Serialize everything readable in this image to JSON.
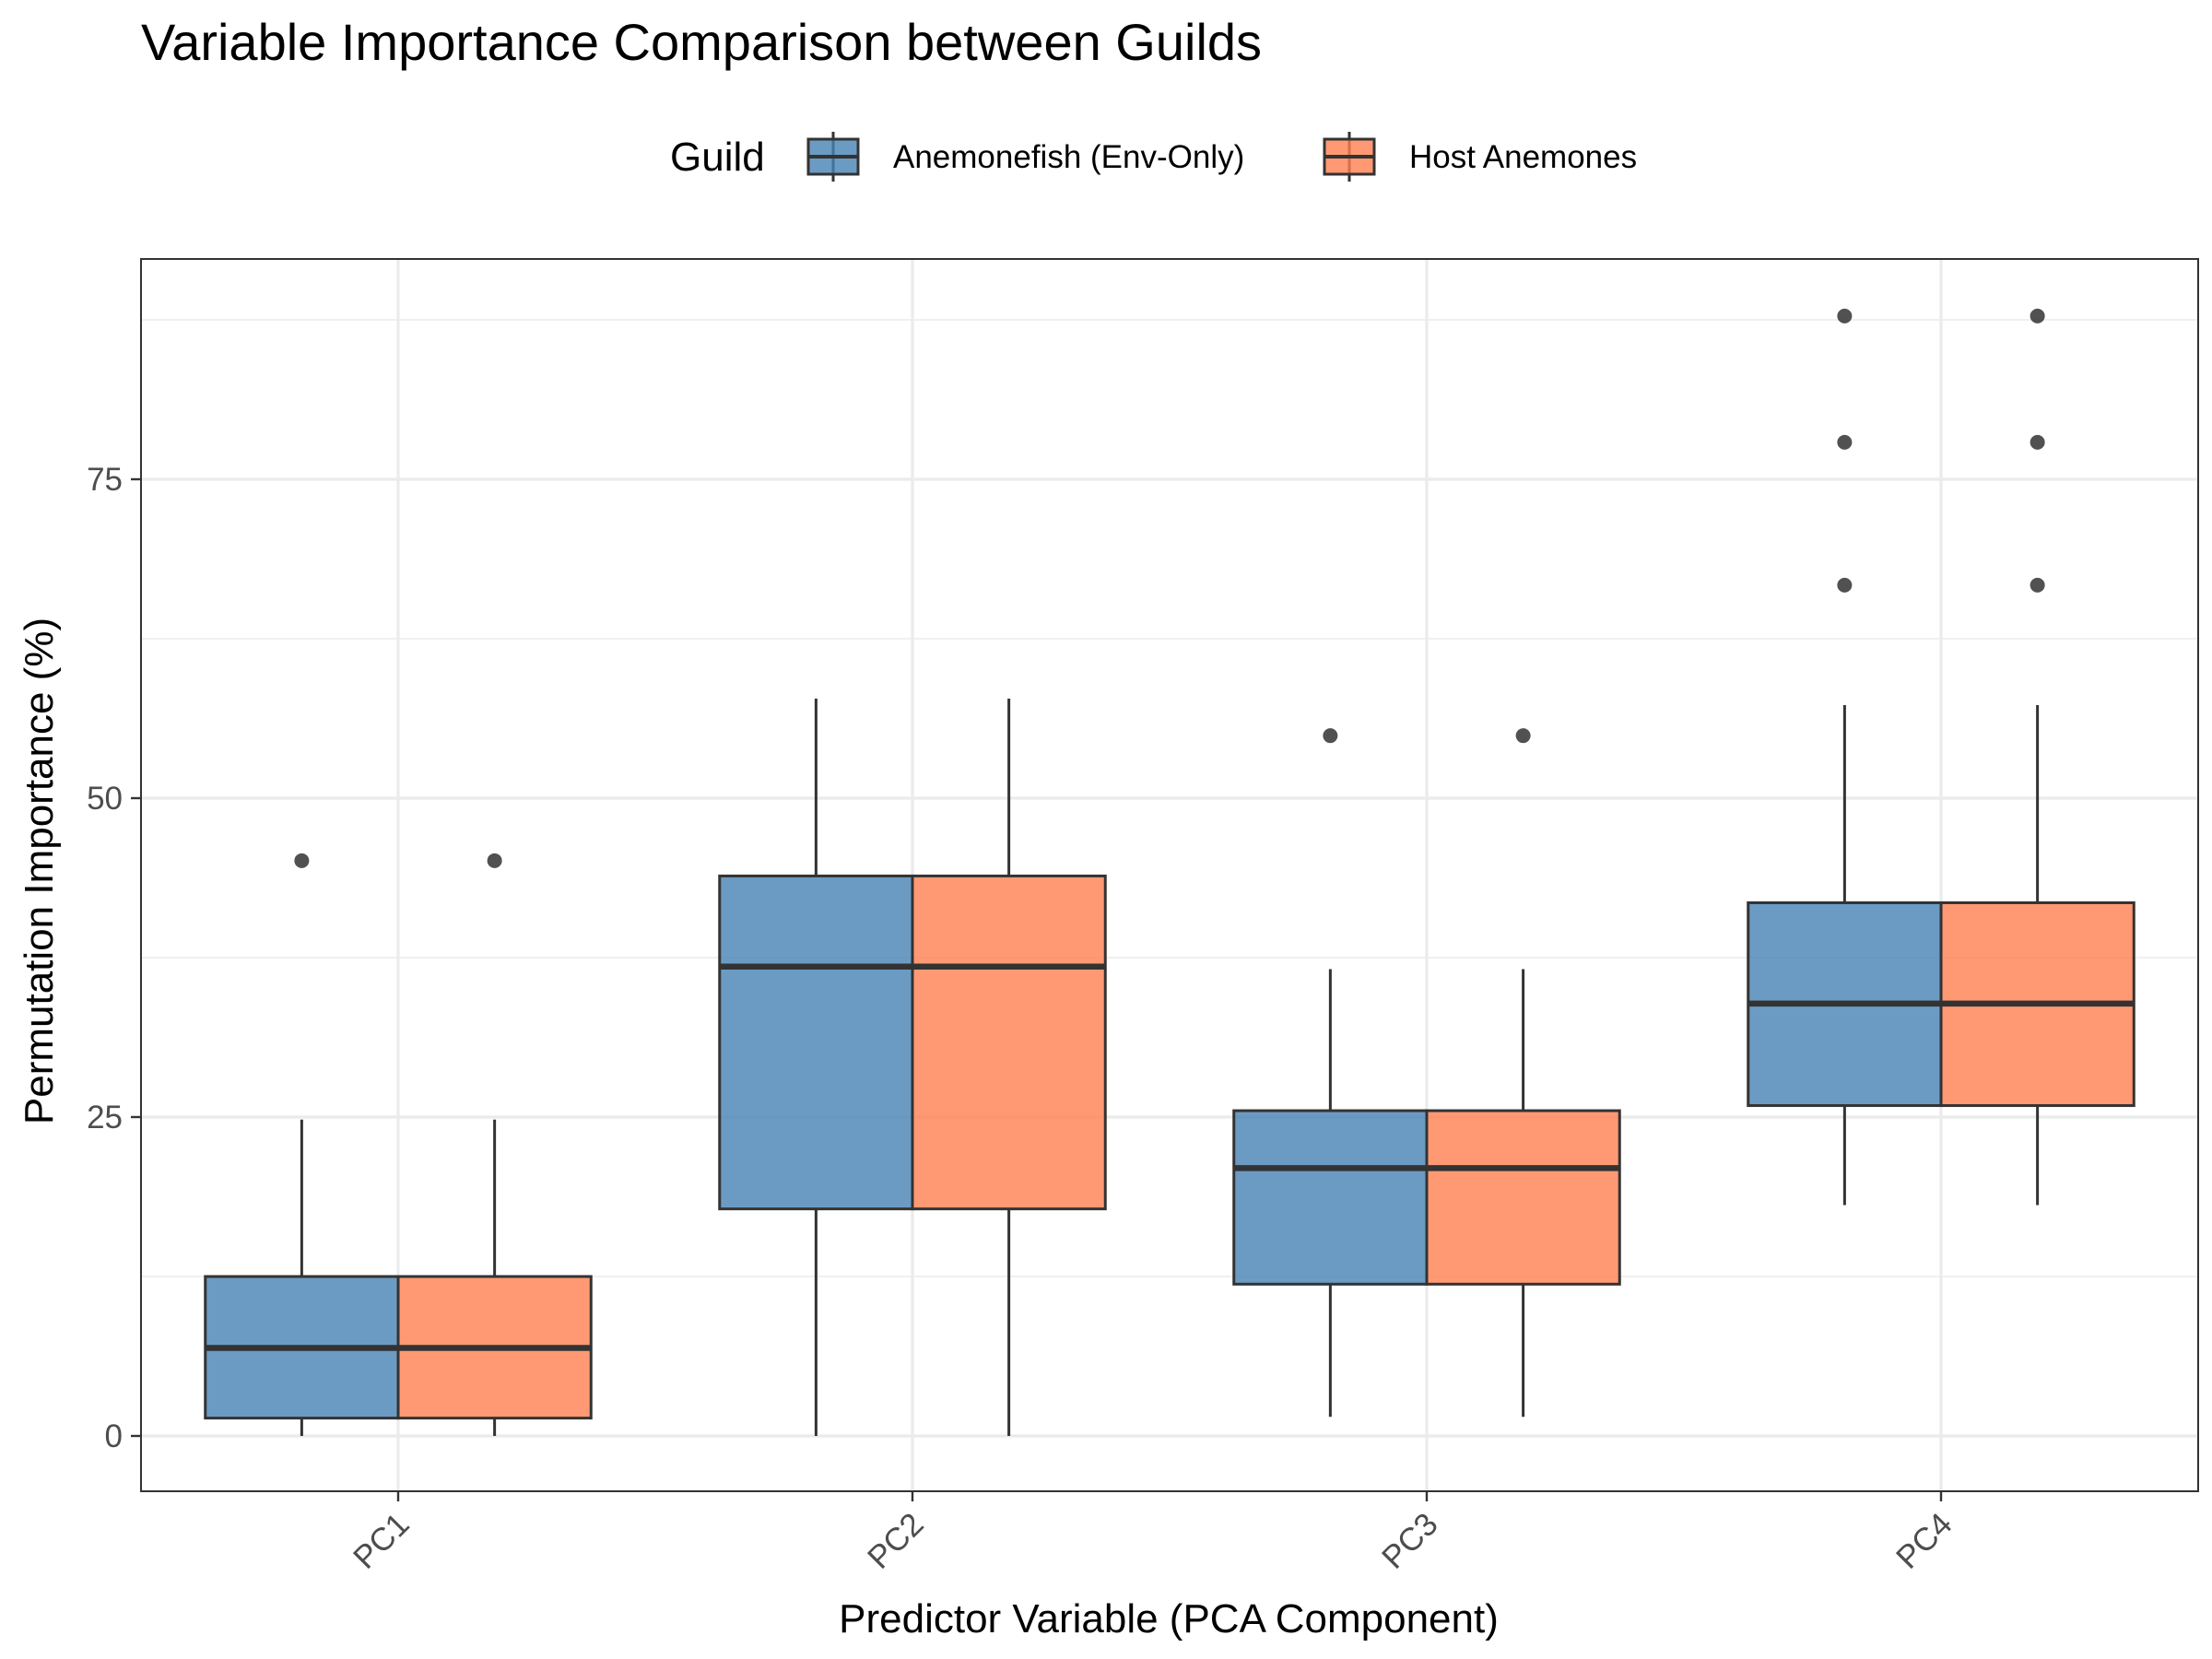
{
  "chart_data": {
    "type": "boxplot",
    "title": "Variable Importance Comparison between Guilds",
    "xlabel": "Predictor Variable (PCA Component)",
    "ylabel": "Permutation Importance (%)",
    "ylim": [
      -4,
      92.5
    ],
    "y_ticks": [
      0,
      25,
      50,
      75
    ],
    "categories": [
      "PC1",
      "PC2",
      "PC3",
      "PC4"
    ],
    "grid": true,
    "legend": {
      "title": "Guild",
      "position": "top"
    },
    "series": [
      {
        "name": "Anemonefish (Env-Only)",
        "color": "#4682B4",
        "boxes": [
          {
            "category": "PC1",
            "whisker_low": 0,
            "q1": 1.4,
            "median": 6.9,
            "q3": 12.5,
            "whisker_high": 24.8,
            "outliers": [
              45.1
            ]
          },
          {
            "category": "PC2",
            "whisker_low": 0,
            "q1": 17.8,
            "median": 36.8,
            "q3": 43.9,
            "whisker_high": 57.8,
            "outliers": []
          },
          {
            "category": "PC3",
            "whisker_low": 1.5,
            "q1": 11.9,
            "median": 21.0,
            "q3": 25.5,
            "whisker_high": 36.6,
            "outliers": [
              54.9
            ]
          },
          {
            "category": "PC4",
            "whisker_low": 18.1,
            "q1": 25.9,
            "median": 33.9,
            "q3": 41.8,
            "whisker_high": 57.3,
            "outliers": [
              66.7,
              77.9,
              87.8
            ]
          }
        ]
      },
      {
        "name": "Host Anemones",
        "color": "#FF7F50",
        "boxes": [
          {
            "category": "PC1",
            "whisker_low": 0,
            "q1": 1.4,
            "median": 6.9,
            "q3": 12.5,
            "whisker_high": 24.8,
            "outliers": [
              45.1
            ]
          },
          {
            "category": "PC2",
            "whisker_low": 0,
            "q1": 17.8,
            "median": 36.8,
            "q3": 43.9,
            "whisker_high": 57.8,
            "outliers": []
          },
          {
            "category": "PC3",
            "whisker_low": 1.5,
            "q1": 11.9,
            "median": 21.0,
            "q3": 25.5,
            "whisker_high": 36.6,
            "outliers": [
              54.9
            ]
          },
          {
            "category": "PC4",
            "whisker_low": 18.1,
            "q1": 25.9,
            "median": 33.9,
            "q3": 41.8,
            "whisker_high": 57.3,
            "outliers": [
              66.7,
              77.9,
              87.8
            ]
          }
        ]
      }
    ]
  }
}
